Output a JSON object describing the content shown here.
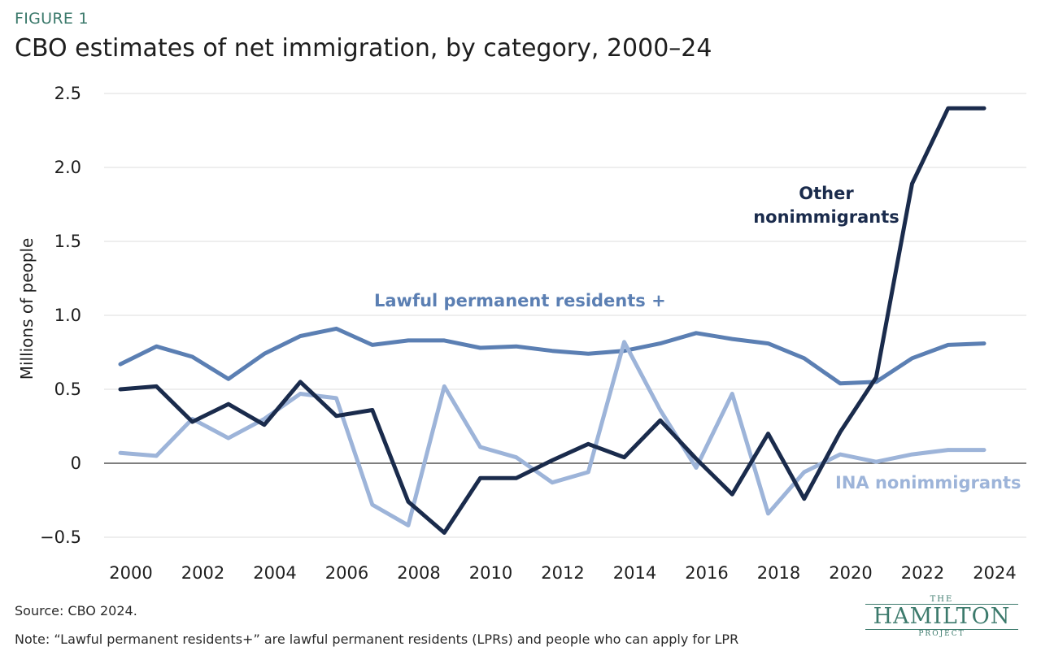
{
  "figure_label": "FIGURE 1",
  "title": "CBO estimates of net immigration, by category, 2000–24",
  "source": "Source: CBO 2024.",
  "note": "Note: “Lawful permanent residents+” are lawful permanent residents (LPRs) and people who can apply for LPR",
  "logo": {
    "top": "THE",
    "mid": "HAMILTON",
    "bot": "PROJECT"
  },
  "colors": {
    "lpr": "#5b7fb3",
    "ina": "#9db4d9",
    "other": "#1a2b4c",
    "grid": "#dcdcdc",
    "zero": "#333333"
  },
  "chart_data": {
    "type": "line",
    "ylabel": "Millions of people",
    "xlabel": "",
    "x": [
      2000,
      2001,
      2002,
      2003,
      2004,
      2005,
      2006,
      2007,
      2008,
      2009,
      2010,
      2011,
      2012,
      2013,
      2014,
      2015,
      2016,
      2017,
      2018,
      2019,
      2020,
      2021,
      2022,
      2023,
      2024
    ],
    "xticks": [
      "2000",
      "2002",
      "2004",
      "2006",
      "2008",
      "2010",
      "2012",
      "2014",
      "2016",
      "2018",
      "2020",
      "2022",
      "2024"
    ],
    "yticks": [
      "2.5",
      "2.0",
      "1.5",
      "1.0",
      "0.5",
      "0",
      "−0.5"
    ],
    "ylim": [
      -0.5,
      2.5
    ],
    "grid": true,
    "series": [
      {
        "name": "Lawful permanent residents +",
        "values": [
          0.67,
          0.79,
          0.72,
          0.57,
          0.74,
          0.86,
          0.91,
          0.8,
          0.83,
          0.83,
          0.78,
          0.79,
          0.76,
          0.74,
          0.76,
          0.81,
          0.88,
          0.84,
          0.81,
          0.71,
          0.54,
          0.55,
          0.71,
          0.8,
          0.81
        ]
      },
      {
        "name": "INA nonimmigrants",
        "values": [
          0.07,
          0.05,
          0.3,
          0.17,
          0.3,
          0.47,
          0.44,
          -0.28,
          -0.42,
          0.52,
          0.11,
          0.04,
          -0.13,
          -0.06,
          0.82,
          0.36,
          -0.03,
          0.47,
          -0.34,
          -0.06,
          0.06,
          0.01,
          0.06,
          0.09,
          0.09
        ]
      },
      {
        "name": "Other nonimmigrants",
        "values": [
          0.5,
          0.52,
          0.28,
          0.4,
          0.26,
          0.55,
          0.32,
          0.36,
          -0.26,
          -0.47,
          -0.1,
          -0.1,
          0.02,
          0.13,
          0.04,
          0.29,
          0.03,
          -0.21,
          0.2,
          -0.24,
          0.21,
          0.58,
          1.89,
          2.4,
          2.4
        ]
      }
    ],
    "annotations": {
      "lpr": "Lawful permanent residents +",
      "ina": "INA nonimmigrants",
      "other_line1": "Other",
      "other_line2": "nonimmigrants"
    }
  }
}
